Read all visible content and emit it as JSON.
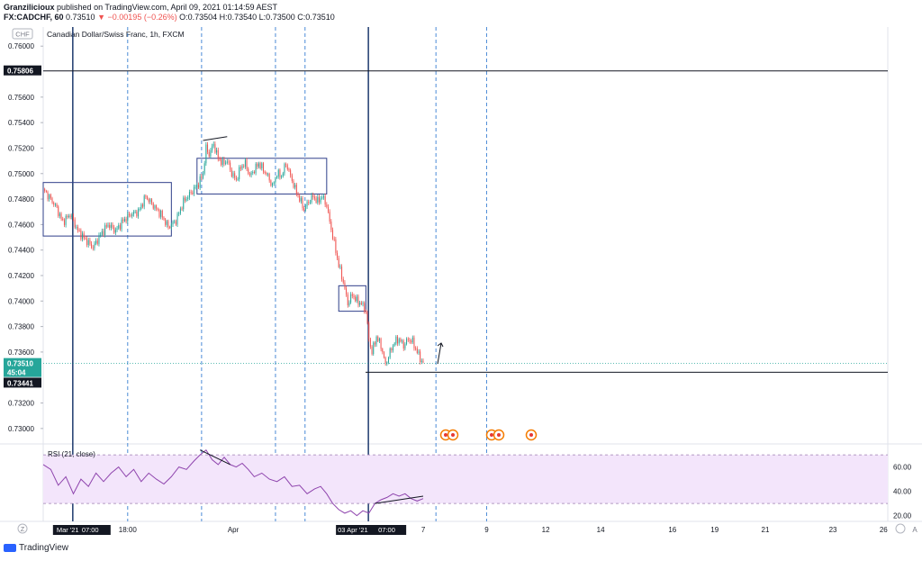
{
  "header": {
    "publisher": "Granzilicioux",
    "published_text": "published on TradingView.com, April 09, 2021 01:14:59 AEST",
    "symbol": "FX:CADCHF, 60",
    "last": "0.73510",
    "change": "−0.00195 (−0.26%)",
    "ohlc": "O:0.73504 H:0.73540 L:0.73500 C:0.73510"
  },
  "chart_data": {
    "type": "candlestick",
    "title": "Canadian Dollar/Swiss Franc, 1h, FXCM",
    "currency": "CHF",
    "ylim": [
      0.729,
      0.7615
    ],
    "y_ticks": [
      "0.76000",
      "0.75600",
      "0.75400",
      "0.75200",
      "0.75000",
      "0.74800",
      "0.74600",
      "0.74400",
      "0.74200",
      "0.74000",
      "0.73800",
      "0.73600",
      "0.73200",
      "0.73000"
    ],
    "x_ticks": [
      "18:00",
      "Apr",
      "7",
      "9",
      "12",
      "14",
      "16",
      "19",
      "21",
      "23",
      "26"
    ],
    "x_highlight": [
      "Mar '21",
      "07:00",
      "03 Apr '21",
      "07:00"
    ],
    "price_labels": {
      "resistance": "0.75806",
      "last": "0.73510",
      "countdown": "45:04",
      "support": "0.73441"
    },
    "key_levels": [
      0.75806,
      0.73441
    ],
    "close_path": [
      [
        0,
        0.7488
      ],
      [
        3,
        0.7483
      ],
      [
        8,
        0.7475
      ],
      [
        13,
        0.7462
      ],
      [
        18,
        0.7468
      ],
      [
        23,
        0.7455
      ],
      [
        28,
        0.7448
      ],
      [
        33,
        0.7442
      ],
      [
        38,
        0.7452
      ],
      [
        43,
        0.746
      ],
      [
        48,
        0.7455
      ],
      [
        53,
        0.7463
      ],
      [
        58,
        0.7468
      ],
      [
        63,
        0.747
      ],
      [
        68,
        0.7482
      ],
      [
        73,
        0.7475
      ],
      [
        78,
        0.7468
      ],
      [
        83,
        0.7458
      ],
      [
        88,
        0.7463
      ],
      [
        93,
        0.7478
      ],
      [
        98,
        0.7485
      ],
      [
        103,
        0.7492
      ],
      [
        106,
        0.75
      ],
      [
        108,
        0.752
      ],
      [
        110,
        0.7515
      ],
      [
        113,
        0.7523
      ],
      [
        116,
        0.7512
      ],
      [
        119,
        0.7508
      ],
      [
        122,
        0.751
      ],
      [
        125,
        0.75
      ],
      [
        128,
        0.7495
      ],
      [
        131,
        0.7505
      ],
      [
        134,
        0.7508
      ],
      [
        137,
        0.7498
      ],
      [
        140,
        0.7503
      ],
      [
        143,
        0.7508
      ],
      [
        146,
        0.7503
      ],
      [
        149,
        0.7498
      ],
      [
        152,
        0.749
      ],
      [
        155,
        0.75
      ],
      [
        158,
        0.7498
      ],
      [
        161,
        0.7508
      ],
      [
        164,
        0.7498
      ],
      [
        167,
        0.7488
      ],
      [
        170,
        0.748
      ],
      [
        173,
        0.7472
      ],
      [
        176,
        0.7478
      ],
      [
        179,
        0.7482
      ],
      [
        182,
        0.7478
      ],
      [
        185,
        0.7482
      ],
      [
        188,
        0.7475
      ],
      [
        190,
        0.7462
      ],
      [
        193,
        0.7445
      ],
      [
        196,
        0.7428
      ],
      [
        199,
        0.7415
      ],
      [
        202,
        0.7398
      ],
      [
        205,
        0.7405
      ],
      [
        208,
        0.74
      ],
      [
        211,
        0.7398
      ],
      [
        214,
        0.7392
      ],
      [
        216,
        0.737
      ],
      [
        218,
        0.736
      ],
      [
        221,
        0.7372
      ],
      [
        224,
        0.7365
      ],
      [
        227,
        0.735
      ],
      [
        230,
        0.736
      ],
      [
        233,
        0.7368
      ],
      [
        236,
        0.737
      ],
      [
        239,
        0.7365
      ],
      [
        242,
        0.737
      ],
      [
        245,
        0.7368
      ],
      [
        248,
        0.736
      ],
      [
        250,
        0.7355
      ],
      [
        252,
        0.7351
      ]
    ],
    "rsi": {
      "label": "RSI (21, close)",
      "ylim": [
        16,
        76
      ],
      "band": [
        30,
        70
      ],
      "ticks": [
        "60.00",
        "40.00",
        "20.00"
      ],
      "values": [
        [
          0,
          62
        ],
        [
          5,
          58
        ],
        [
          10,
          45
        ],
        [
          15,
          52
        ],
        [
          20,
          38
        ],
        [
          25,
          50
        ],
        [
          30,
          44
        ],
        [
          35,
          55
        ],
        [
          40,
          48
        ],
        [
          45,
          55
        ],
        [
          50,
          60
        ],
        [
          55,
          52
        ],
        [
          60,
          58
        ],
        [
          65,
          48
        ],
        [
          70,
          55
        ],
        [
          75,
          50
        ],
        [
          80,
          46
        ],
        [
          85,
          52
        ],
        [
          90,
          60
        ],
        [
          95,
          58
        ],
        [
          100,
          65
        ],
        [
          104,
          70
        ],
        [
          108,
          74
        ],
        [
          112,
          66
        ],
        [
          116,
          62
        ],
        [
          120,
          68
        ],
        [
          124,
          62
        ],
        [
          128,
          60
        ],
        [
          132,
          63
        ],
        [
          136,
          58
        ],
        [
          140,
          52
        ],
        [
          145,
          55
        ],
        [
          150,
          50
        ],
        [
          155,
          48
        ],
        [
          160,
          52
        ],
        [
          165,
          44
        ],
        [
          170,
          45
        ],
        [
          175,
          38
        ],
        [
          180,
          42
        ],
        [
          184,
          44
        ],
        [
          188,
          38
        ],
        [
          192,
          30
        ],
        [
          196,
          25
        ],
        [
          200,
          22
        ],
        [
          204,
          24
        ],
        [
          208,
          20
        ],
        [
          212,
          24
        ],
        [
          216,
          22
        ],
        [
          220,
          30
        ],
        [
          224,
          33
        ],
        [
          228,
          35
        ],
        [
          232,
          38
        ],
        [
          236,
          36
        ],
        [
          240,
          38
        ],
        [
          244,
          34
        ],
        [
          248,
          32
        ],
        [
          252,
          34
        ]
      ]
    },
    "vertical_lines": {
      "solid": [
        0.7,
        7.7
      ],
      "dashed": [
        2,
        3.75,
        5.5,
        6.2,
        9.3,
        10.5
      ]
    },
    "x_ticks_pos": [
      2,
      4.5,
      9.0,
      10.5,
      11.9,
      13.2,
      14.9,
      15.9,
      17.1,
      18.7,
      19.9
    ]
  }
}
